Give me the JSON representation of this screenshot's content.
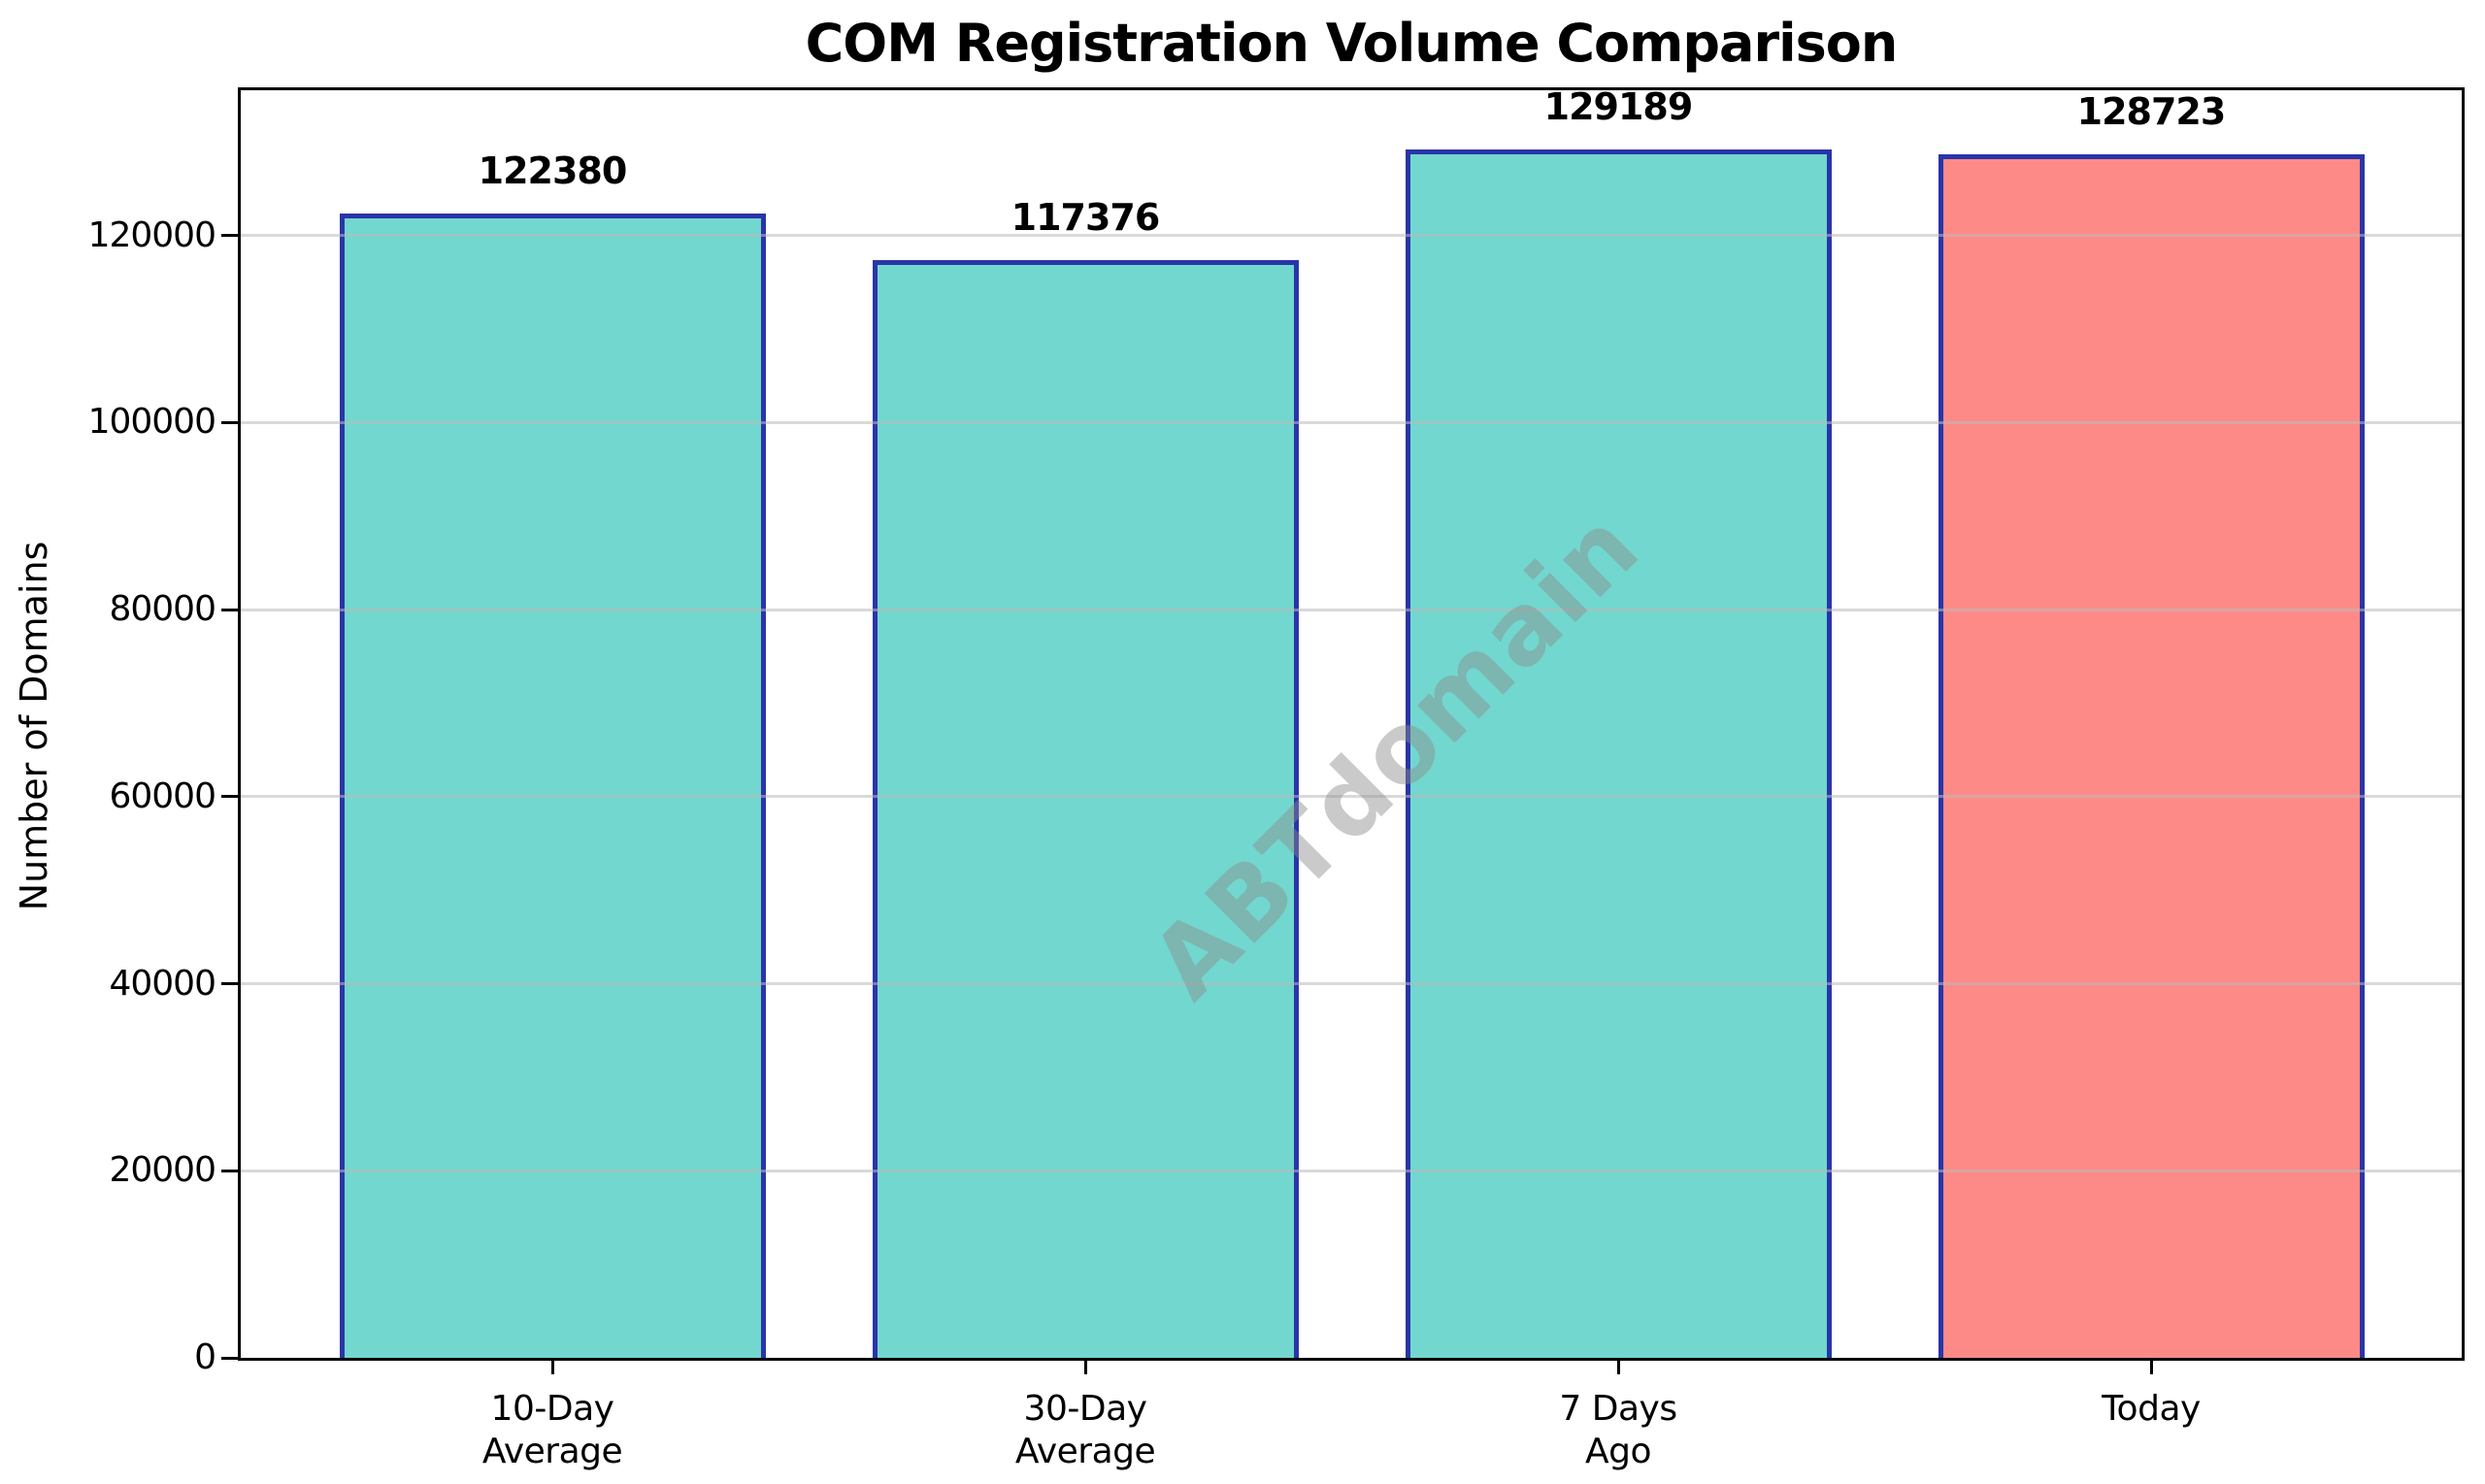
{
  "figure": {
    "title": "COM Registration Volume Comparison",
    "watermark": "ABTdomain"
  },
  "chart_data": {
    "type": "bar",
    "title": "COM Registration Volume Comparison",
    "xlabel": "",
    "ylabel": "Number of Domains",
    "categories": [
      "10-Day\nAverage",
      "30-Day\nAverage",
      "7 Days\nAgo",
      "Today"
    ],
    "values": [
      122380,
      117376,
      129189,
      128723
    ],
    "value_labels": [
      "122380",
      "117376",
      "129189",
      "128723"
    ],
    "bar_colors": [
      "#72D7CE",
      "#72D7CE",
      "#72D7CE",
      "#FE8A87"
    ],
    "edge_color": "#2A35A8",
    "ylim": [
      0,
      135520
    ],
    "yticks": [
      0,
      20000,
      40000,
      60000,
      80000,
      100000,
      120000
    ],
    "ytick_labels": [
      "0",
      "20000",
      "40000",
      "60000",
      "80000",
      "100000",
      "120000"
    ],
    "grid": "y-only, light gray, drawn faint over bars",
    "legend": "none",
    "watermark": "ABTdomain"
  }
}
